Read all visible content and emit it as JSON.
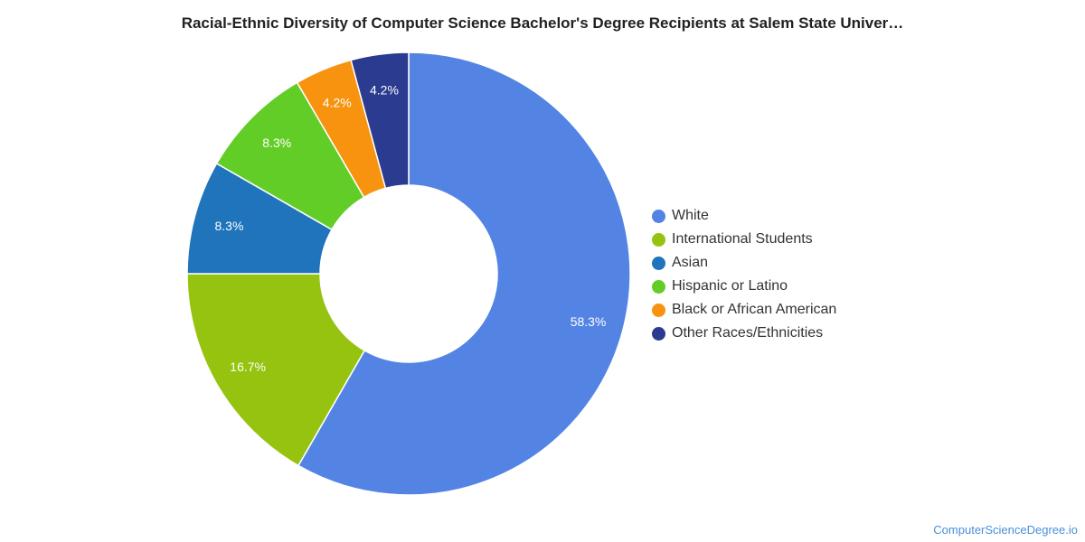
{
  "chart_data": {
    "type": "pie",
    "variant": "donut",
    "title": "Racial-Ethnic Diversity of Computer Science Bachelor's Degree Recipients at Salem State Univer…",
    "legend_placement": "right",
    "slices": [
      {
        "label": "White",
        "value": 58.3,
        "value_label": "58.3%",
        "color": "#5384e4"
      },
      {
        "label": "International Students",
        "value": 16.7,
        "value_label": "16.7%",
        "color": "#96c30f"
      },
      {
        "label": "Asian",
        "value": 8.3,
        "value_label": "8.3%",
        "color": "#1f74bb"
      },
      {
        "label": "Hispanic or Latino",
        "value": 8.3,
        "value_label": "8.3%",
        "color": "#63cd28"
      },
      {
        "label": "Black or African American",
        "value": 4.2,
        "value_label": "4.2%",
        "color": "#f7930f"
      },
      {
        "label": "Other Races/Ethnicities",
        "value": 4.2,
        "value_label": "4.2%",
        "color": "#2b3b8f"
      }
    ]
  },
  "watermark": "ComputerScienceDegree.io"
}
